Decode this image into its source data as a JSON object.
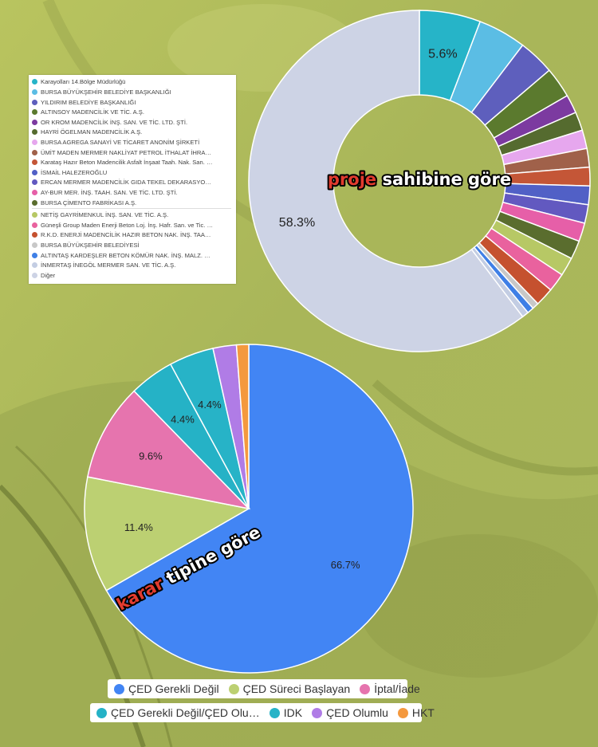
{
  "colors": {
    "background_base": "#b8c263",
    "background_dark": "#6e7a32"
  },
  "chart_data": [
    {
      "type": "pie",
      "title": "proje sahibine göre",
      "title_parts": [
        {
          "text": "proje",
          "color": "#e23b2e"
        },
        {
          "text": " sahibine göre",
          "color": "#ffffff"
        }
      ],
      "legend_position": "left",
      "series": [
        {
          "name": "Karayolları 14.Bölge Müdürlüğü",
          "value": 5.6,
          "label": "5.6%",
          "color": "#26b4c8"
        },
        {
          "name": "BURSA BÜYÜKŞEHİR BELEDİYE BAŞKANLIĞI",
          "value": 4.4,
          "color": "#5bbde4"
        },
        {
          "name": "YILDIRIM BELEDİYE BAŞKANLIĞI",
          "value": 3.3,
          "color": "#5e5fbd"
        },
        {
          "name": "ALTINSOY MADENCİLİK VE TİC. A.Ş.",
          "value": 2.8,
          "color": "#5b7a2e"
        },
        {
          "name": "OR KROM MADENCİLİK İNŞ. SAN. VE TİC. LTD. ŞTİ.",
          "value": 1.7,
          "color": "#7c3aa0"
        },
        {
          "name": "HAYRİ ÖGELMAN MADENCİLİK A.Ş.",
          "value": 1.7,
          "color": "#556b2f"
        },
        {
          "name": "BURSA AGREGA SANAYİ VE TİCARET ANONİM ŞİRKETİ",
          "value": 1.7,
          "color": "#e6a7ee"
        },
        {
          "name": "ÜMİT MADEN MERMER NAKLİYAT PETROL İTHALAT İHRA…",
          "value": 1.7,
          "color": "#a0614a"
        },
        {
          "name": "Karataş Hazır Beton Madencilik Asfalt İnşaat Taah. Nak. San. …",
          "value": 1.7,
          "color": "#c45637"
        },
        {
          "name": "İSMAİL HALEZEROĞLU",
          "value": 1.7,
          "color": "#5160c6"
        },
        {
          "name": "ERCAN MERMER MADENCİLİK GIDA TEKEL DEKARASYO…",
          "value": 1.7,
          "color": "#6259c0"
        },
        {
          "name": "AY-BUR MER. İNŞ. TAAH. SAN. VE TİC. LTD. ŞTİ.",
          "value": 1.7,
          "color": "#e65fa8"
        },
        {
          "name": "BURSA ÇİMENTO FABRİKASI A.Ş.",
          "value": 1.7,
          "color": "#5a6d2e"
        },
        {
          "name": "NETİŞ GAYRİMENKUL İNŞ. SAN. VE TİC. A.Ş.",
          "value": 1.7,
          "color": "#b7c865"
        },
        {
          "name": "Güneşli Group Maden Enerji Beton Loj. İnş. Hafr. San. ve Tic. …",
          "value": 1.7,
          "color": "#e9629e"
        },
        {
          "name": "R.K.D. ENERJİ MADENCİLİK HAZIR BETON NAK. İNŞ. TAA…",
          "value": 1.7,
          "color": "#c5512f"
        },
        {
          "name": "BURSA BÜYÜKŞEHİR BELEDİYESİ",
          "value": 0.6,
          "color": "#c8c8c8"
        },
        {
          "name": "ALTINTAŞ KARDEŞLER BETON KÖMÜR NAK. İNŞ. MALZ. …",
          "value": 0.6,
          "color": "#3f7fe6"
        },
        {
          "name": "İNMERTAŞ İNEGÖL MERMER SAN. VE TİC. A.Ş.",
          "value": 0.6,
          "color": "#c3cde3"
        },
        {
          "name": "Diğer",
          "value": 58.3,
          "label": "58.3%",
          "color": "#cdd3e5"
        }
      ]
    },
    {
      "type": "pie",
      "title": "karar tipine göre",
      "title_parts": [
        {
          "text": "karar",
          "color": "#e23b2e"
        },
        {
          "text": " tipine göre",
          "color": "#ffffff"
        }
      ],
      "legend_position": "bottom",
      "series": [
        {
          "name": "ÇED Gerekli Değil",
          "value": 66.7,
          "label": "66.7%",
          "color": "#4285f4"
        },
        {
          "name": "ÇED Süreci Başlayan",
          "value": 11.4,
          "label": "11.4%",
          "color": "#bcd072"
        },
        {
          "name": "İptal/İade",
          "value": 9.6,
          "label": "9.6%",
          "color": "#e674ae"
        },
        {
          "name": "ÇED Gerekli Değil/ÇED Olu…",
          "value": 4.4,
          "label": "4.4%",
          "color": "#25b2c6"
        },
        {
          "name": "IDK",
          "value": 4.4,
          "label": "4.4%",
          "color": "#27b3c7"
        },
        {
          "name": "ÇED Olumlu",
          "value": 2.3,
          "color": "#b07ce6"
        },
        {
          "name": "HKT",
          "value": 1.2,
          "color": "#f4993e"
        }
      ]
    }
  ]
}
